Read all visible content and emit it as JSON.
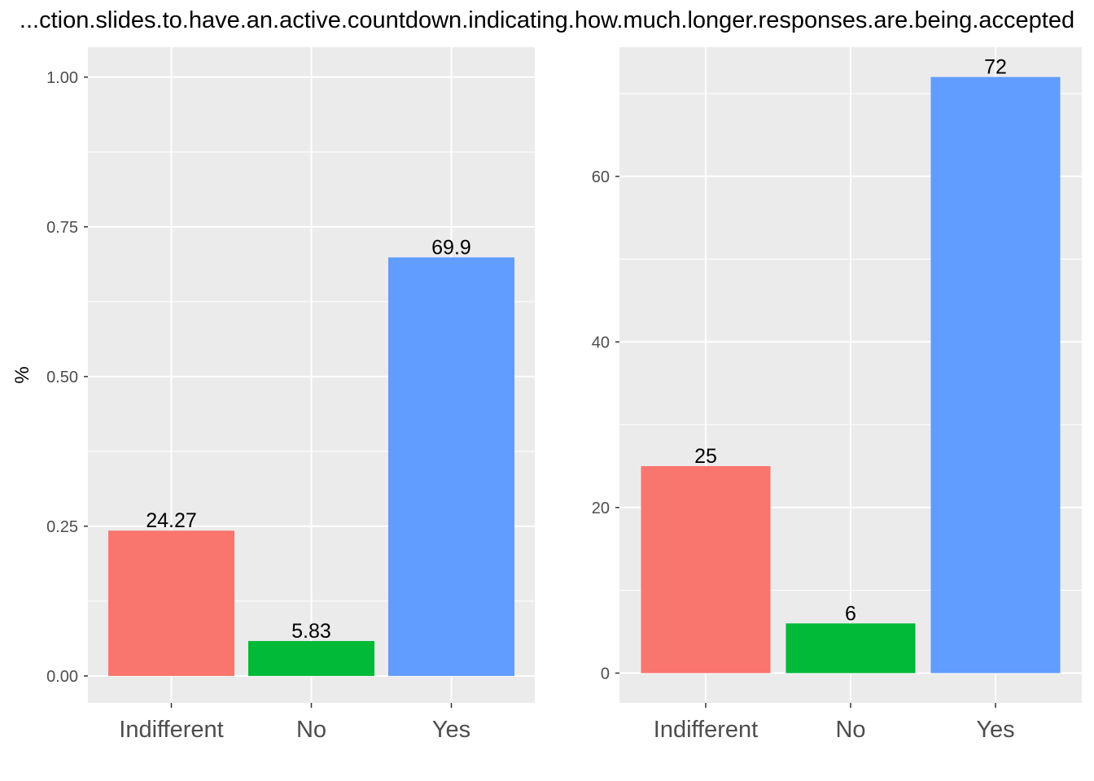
{
  "title": "...ction.slides.to.have.an.active.countdown.indicating.how.much.longer.responses.are.being.accepted",
  "colors": {
    "panel_bg": "#EBEBEB",
    "grid": "#FFFFFF",
    "tick": "#333333",
    "Indifferent": "#F8766D",
    "No": "#00BA38",
    "Yes": "#619CFF"
  },
  "chart_data": [
    {
      "type": "bar",
      "categories": [
        "Indifferent",
        "No",
        "Yes"
      ],
      "values": [
        0.2427,
        0.0583,
        0.699
      ],
      "data_labels": [
        "24.27",
        "5.83",
        "69.9"
      ],
      "ylabel": "%",
      "ylim": [
        -0.045,
        1.05
      ],
      "yticks": [
        0,
        0.25,
        0.5,
        0.75,
        1.0
      ],
      "ytick_labels": [
        "0.00",
        "0.25",
        "0.50",
        "0.75",
        "1.00"
      ],
      "grid": true
    },
    {
      "type": "bar",
      "categories": [
        "Indifferent",
        "No",
        "Yes"
      ],
      "values": [
        25,
        6,
        72
      ],
      "data_labels": [
        "25",
        "6",
        "72"
      ],
      "ylabel": "",
      "ylim": [
        -3.6,
        75.6
      ],
      "yticks": [
        0,
        20,
        40,
        60
      ],
      "ytick_labels": [
        "0",
        "20",
        "40",
        "60"
      ],
      "grid": true
    }
  ]
}
